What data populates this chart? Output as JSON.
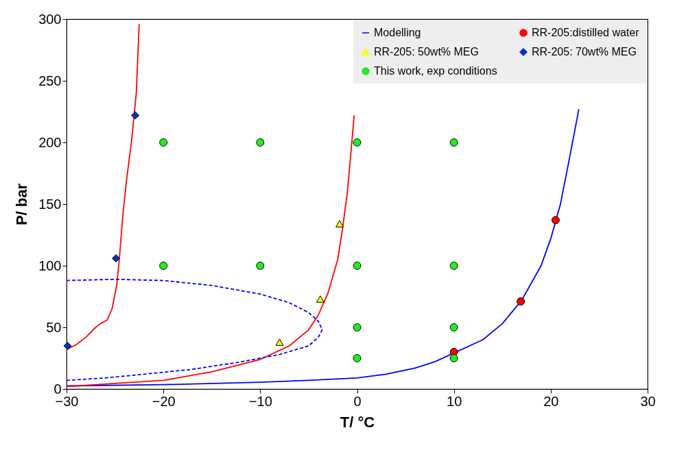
{
  "chart_data": {
    "type": "line",
    "xlabel": "T/ °C",
    "ylabel": "P/ bar",
    "xlim": [
      -30,
      30
    ],
    "xticks": [
      -30,
      -20,
      -10,
      0,
      10,
      20,
      30
    ],
    "ylim": [
      0,
      300
    ],
    "yticks": [
      0,
      50,
      100,
      150,
      200,
      250,
      300
    ],
    "grid": false,
    "legend": "top right",
    "series": [
      {
        "type": "line",
        "name": "Modelling",
        "color": "#0000ff",
        "line_style": "solid",
        "marker": "none",
        "x": [
          -30,
          -20,
          -10,
          -5,
          0,
          3,
          6,
          8,
          13,
          15,
          17,
          19,
          20,
          21,
          22,
          22.9
        ],
        "values": [
          2.5,
          3.5,
          5.5,
          7,
          9,
          12,
          17,
          22,
          40,
          53,
          72,
          100,
          122,
          150,
          190,
          227
        ]
      },
      {
        "type": "line",
        "color": "#ff0000",
        "line_style": "solid",
        "marker": "none",
        "x": [
          -30,
          -29,
          -28,
          -27,
          -26.5,
          -25.8,
          -25.3,
          -24.8,
          -24.5,
          -24.2,
          -23.8,
          -23.3,
          -22.8,
          -22.5
        ],
        "values": [
          32,
          36,
          42,
          50,
          53,
          56,
          65,
          85,
          110,
          140,
          170,
          200,
          240,
          296
        ]
      },
      {
        "type": "line",
        "color": "#ff0000",
        "line_style": "solid",
        "marker": "none",
        "x": [
          -30,
          -20,
          -15,
          -10,
          -7,
          -5,
          -4,
          -3,
          -2,
          -1.5,
          -1,
          -0.6,
          -0.3
        ],
        "values": [
          2,
          7,
          14,
          24,
          35,
          48,
          60,
          78,
          105,
          130,
          160,
          195,
          222
        ]
      },
      {
        "type": "line",
        "color": "#0000ff",
        "line_style": "dashed",
        "marker": "none",
        "x": [
          -30,
          -25,
          -20,
          -15,
          -10,
          -7,
          -5,
          -4,
          -3.6,
          -4,
          -5,
          -8,
          -12,
          -17,
          -22,
          -26,
          -30
        ],
        "values": [
          88,
          89,
          88,
          84,
          77,
          70,
          62,
          55,
          48,
          42,
          35,
          28,
          22,
          16,
          12,
          9,
          7
        ]
      },
      {
        "type": "scatter",
        "name": "RR-205:distilled water",
        "color": "#ff0000",
        "marker": "circle",
        "x": [
          10,
          16.9,
          20.5
        ],
        "values": [
          30,
          71,
          137
        ]
      },
      {
        "type": "scatter",
        "name": "RR-205: 50wt% MEG",
        "color": "#ffff00",
        "marker": "triangle",
        "x": [
          -8,
          -3.8,
          -1.8
        ],
        "values": [
          38,
          73,
          134
        ]
      },
      {
        "type": "scatter",
        "name": "RR-205: 70wt% MEG",
        "color": "#0033cc",
        "marker": "diamond",
        "x": [
          -29.9,
          -24.9,
          -22.9
        ],
        "values": [
          35,
          106,
          222
        ]
      },
      {
        "type": "scatter",
        "name": "This work, exp conditions",
        "color": "#22ee22",
        "marker": "circle",
        "x": [
          -20,
          -10,
          0,
          10,
          -20,
          -10,
          0,
          10,
          0,
          10,
          0,
          10
        ],
        "values": [
          200,
          200,
          200,
          200,
          100,
          100,
          100,
          100,
          50,
          50,
          25,
          25
        ]
      }
    ]
  }
}
